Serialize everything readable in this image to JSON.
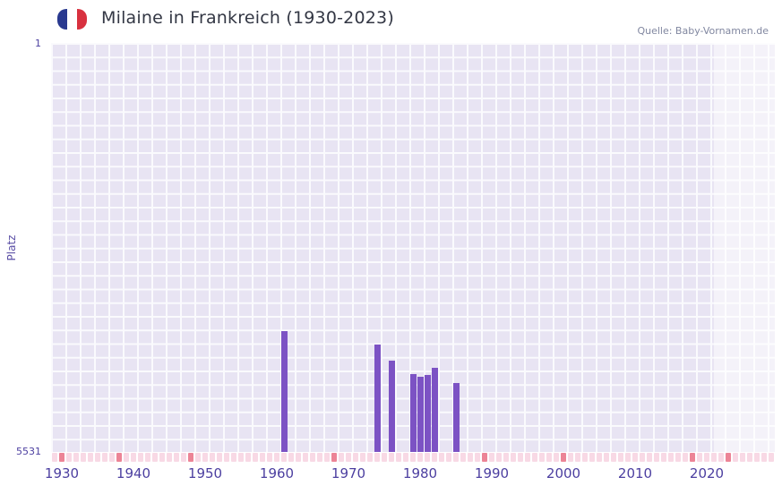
{
  "header": {
    "title": "Milaine in Frankreich (1930-2023)",
    "source": "Quelle: Baby-Vornamen.de",
    "flag_icon": {
      "name": "france-flag",
      "colors": [
        "#29398f",
        "#ffffff",
        "#d8313f"
      ]
    }
  },
  "chart_data": {
    "type": "bar",
    "title": "Milaine in Frankreich (1930-2023)",
    "xlabel": "",
    "ylabel": "Platz",
    "y_axis": {
      "top_tick": "1",
      "bottom_tick": "5531",
      "min": 1,
      "max": 5531,
      "inverted": true
    },
    "x_ticks": [
      1930,
      1940,
      1950,
      1960,
      1970,
      1980,
      1990,
      2000,
      2010,
      2020
    ],
    "x_domain": [
      1928.5,
      2029.5
    ],
    "grid": true,
    "legend": false,
    "bar_color": "#7c52c4",
    "recent_band_start_year": 2021,
    "bars": [
      {
        "year": 1961,
        "rank": 3900
      },
      {
        "year": 1974,
        "rank": 4080
      },
      {
        "year": 1976,
        "rank": 4300
      },
      {
        "year": 1979,
        "rank": 4480
      },
      {
        "year": 1980,
        "rank": 4510
      },
      {
        "year": 1981,
        "rank": 4490
      },
      {
        "year": 1982,
        "rank": 4390
      },
      {
        "year": 1985,
        "rank": 4600
      }
    ],
    "strip": {
      "year_start": 1929,
      "year_end": 2029,
      "base_color": "#f8d9e5",
      "highlight_color": "#ec8496",
      "highlight_years": [
        1930,
        1938,
        1948,
        1968,
        1989,
        2000,
        2018,
        2023
      ]
    }
  }
}
